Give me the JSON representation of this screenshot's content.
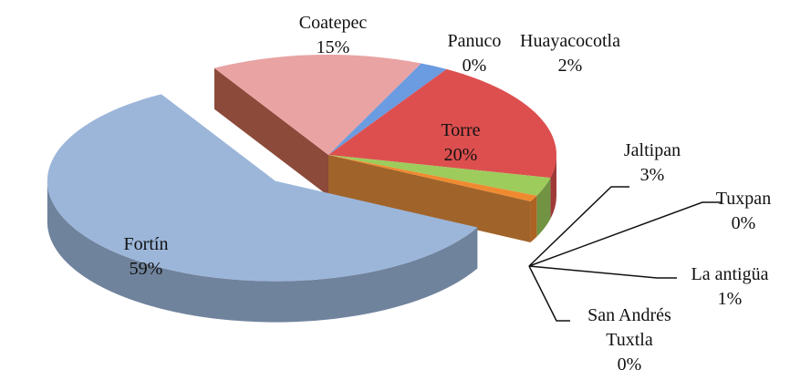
{
  "chart_data": {
    "type": "pie",
    "categories": [
      "Coatepec",
      "Panuco",
      "Huayacocotla",
      "Torre",
      "Jaltipan",
      "Tuxpan",
      "La antigüa",
      "San Andrés Tuxtla",
      "Fortín"
    ],
    "values": [
      15,
      0,
      2,
      20,
      3,
      0,
      1,
      0,
      59
    ],
    "value_labels": [
      "15%",
      "0%",
      "2%",
      "20%",
      "3%",
      "0%",
      "1%",
      "0%",
      "59%"
    ],
    "colors": [
      "#e9a3a3",
      "#5a8fd8",
      "#6b9be0",
      "#dd4f4f",
      "#9dcc5c",
      "#4aa3dc",
      "#f08a30",
      "#3a70c0",
      "#9cb6da"
    ]
  }
}
